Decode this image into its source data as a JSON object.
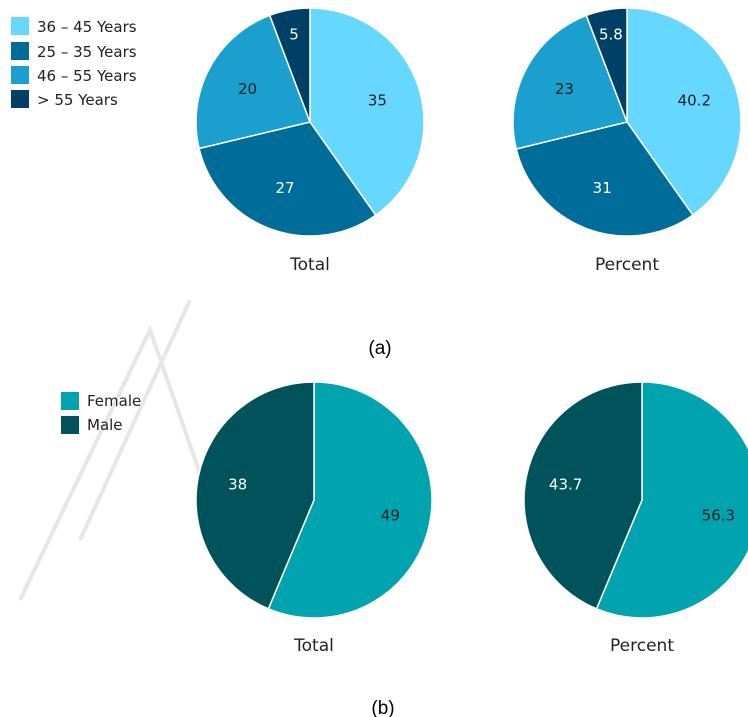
{
  "panels": [
    {
      "caption": "(a)",
      "legend": [
        {
          "label": "36 – 45 Years",
          "color": "#66d7ff"
        },
        {
          "label": "25 – 35 Years",
          "color": "#006c99"
        },
        {
          "label": "46 – 55 Years",
          "color": "#1a9fcf"
        },
        {
          "label": "> 55 Years",
          "color": "#003f66"
        }
      ]
    },
    {
      "caption": "(b)",
      "legend": [
        {
          "label": "Female",
          "color": "#00a3ae"
        },
        {
          "label": "Male",
          "color": "#00535a"
        }
      ]
    }
  ],
  "chart_data": [
    {
      "type": "pie",
      "title": "Total",
      "labels": [
        "36 – 45 Years",
        "25 – 35 Years",
        "46 – 55 Years",
        "> 55 Years"
      ],
      "values": [
        35,
        27,
        20,
        5
      ],
      "value_labels": [
        "35",
        "27",
        "20",
        "5"
      ],
      "colors": [
        "#66d7ff",
        "#006c99",
        "#1a9fcf",
        "#003f66"
      ],
      "label_colors": [
        "#222222",
        "#ffffff",
        "#222222",
        "#ffffff"
      ]
    },
    {
      "type": "pie",
      "title": "Percent",
      "labels": [
        "36 – 45 Years",
        "25 – 35 Years",
        "46 – 55 Years",
        "> 55 Years"
      ],
      "values": [
        40.2,
        31,
        23,
        5.8
      ],
      "value_labels": [
        "40.2",
        "31",
        "23",
        "5.8"
      ],
      "colors": [
        "#66d7ff",
        "#006c99",
        "#1a9fcf",
        "#003f66"
      ],
      "label_colors": [
        "#222222",
        "#ffffff",
        "#222222",
        "#ffffff"
      ]
    },
    {
      "type": "pie",
      "title": "Total",
      "labels": [
        "Female",
        "Male"
      ],
      "values": [
        49,
        38
      ],
      "value_labels": [
        "49",
        "38"
      ],
      "colors": [
        "#00a3ae",
        "#00535a"
      ],
      "label_colors": [
        "#222222",
        "#ffffff"
      ]
    },
    {
      "type": "pie",
      "title": "Percent",
      "labels": [
        "Female",
        "Male"
      ],
      "values": [
        56.3,
        43.7
      ],
      "value_labels": [
        "56.3",
        "43.7"
      ],
      "colors": [
        "#00a3ae",
        "#00535a"
      ],
      "label_colors": [
        "#222222",
        "#ffffff"
      ]
    }
  ]
}
